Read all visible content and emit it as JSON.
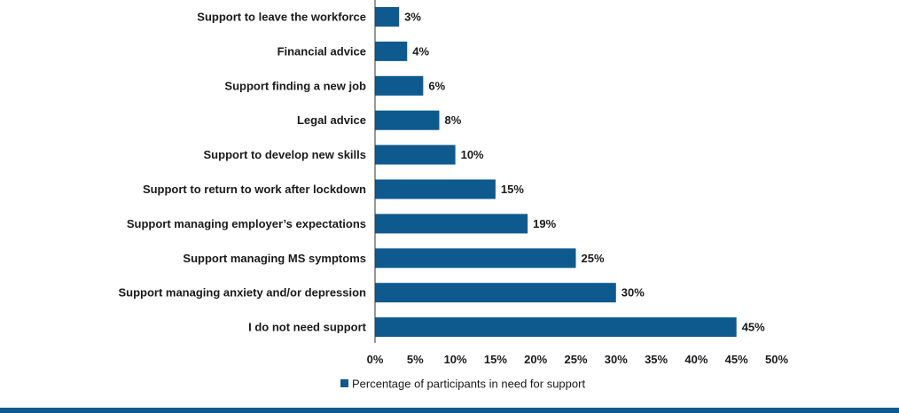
{
  "chart_data": {
    "type": "bar",
    "orientation": "horizontal",
    "categories": [
      "Support to leave the workforce",
      "Financial advice",
      "Support finding a new job",
      "Legal advice",
      "Support to develop new skills",
      "Support to return to work after lockdown",
      "Support managing employer’s expectations",
      "Support managing MS symptoms",
      "Support managing anxiety and/or depression",
      "I do not need support"
    ],
    "series": [
      {
        "name": "Percentage of participants in need for support",
        "values": [
          3,
          4,
          6,
          8,
          10,
          15,
          19,
          25,
          30,
          45
        ],
        "value_labels": [
          "3%",
          "4%",
          "6%",
          "8%",
          "10%",
          "15%",
          "19%",
          "25%",
          "30%",
          "45%"
        ]
      }
    ],
    "xlim": [
      0,
      50
    ],
    "x_ticks": [
      0,
      5,
      10,
      15,
      20,
      25,
      30,
      35,
      40,
      45,
      50
    ],
    "x_tick_labels": [
      "0%",
      "5%",
      "10%",
      "15%",
      "20%",
      "25%",
      "30%",
      "35%",
      "40%",
      "45%",
      "50%"
    ],
    "grid": false,
    "legend_position": "bottom",
    "colors": {
      "bar": "#0e5a8f",
      "footer_band": "#0e5a8f"
    }
  }
}
